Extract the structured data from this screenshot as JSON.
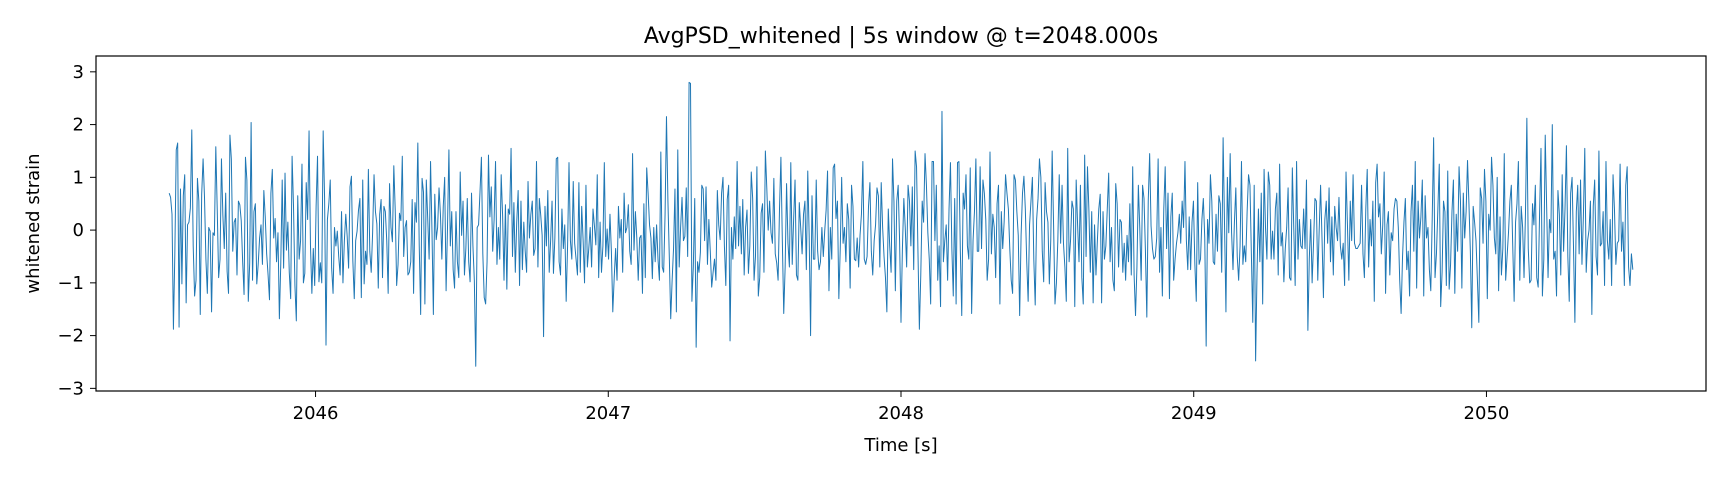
{
  "chart_data": {
    "type": "line",
    "title": "AvgPSD_whitened | 5s window @ t=2048.000s",
    "xlabel": "Time [s]",
    "ylabel": "whitened strain",
    "xlim": [
      2045.25,
      2050.75
    ],
    "ylim": [
      -3.05,
      3.3
    ],
    "xticks": [
      2046,
      2047,
      2048,
      2049,
      2050
    ],
    "xtick_labels": [
      "2046",
      "2047",
      "2048",
      "2049",
      "2050"
    ],
    "yticks": [
      3,
      2,
      1,
      0,
      -1,
      -2,
      -3
    ],
    "ytick_labels": [
      "3",
      "2",
      "1",
      "0",
      "−1",
      "−2",
      "−3"
    ],
    "grid": false,
    "legend": "none",
    "x_start": 2045.5,
    "x_end": 2050.5,
    "samples_per_second": 100,
    "series": [
      {
        "color": "#1f77b4",
        "y": [
          0.7,
          0.62,
          0.3,
          -1.88,
          -0.45,
          1.52,
          1.65,
          -1.84,
          0.78,
          -1.02,
          0.65,
          1.05,
          -1.38,
          0.1,
          0.15,
          0.42,
          1.9,
          -0.3,
          -1.25,
          -0.95,
          0.98,
          0.55,
          -1.6,
          0.68,
          1.35,
          0.62,
          -0.55,
          -1.2,
          0.05,
          -0.02,
          -1.55,
          -0.05,
          -0.1,
          1.58,
          0.4,
          -0.9,
          -0.55,
          1.35,
          0.28,
          -0.35,
          0.7,
          -0.78,
          -1.2,
          1.8,
          1.35,
          -0.4,
          0.15,
          0.22,
          -0.85,
          0.55,
          0.48,
          0.18,
          -0.6,
          -1.22,
          1.38,
          0.95,
          -1.35,
          -0.62,
          2.04,
          -0.95,
          0.35,
          0.5,
          -1.02,
          -0.65,
          -0.15,
          0.1,
          -0.65,
          0.75,
          0.25,
          -0.45,
          -0.85,
          -1.32,
          0.7,
          1.15,
          -0.15,
          0.22,
          -0.6,
          -0.05,
          -1.68,
          -0.62,
          0.95,
          -0.72,
          1.08,
          -0.38,
          0.15,
          -0.8,
          -1.3,
          1.4,
          0.45,
          -1.05,
          -1.72,
          0.65,
          -0.55,
          -0.2,
          1.25,
          -1.0,
          -0.82,
          0.9,
          0.2,
          1.88,
          -0.28,
          -1.2,
          -0.35,
          -1.05,
          0.45,
          1.4,
          -0.98,
          -0.62,
          -1.0,
          1.88,
          0.6,
          -2.18,
          0.2,
          0.5,
          0.95,
          -0.72,
          -1.2,
          0.05,
          -0.3,
          -0.02,
          -0.5,
          -0.85,
          0.35,
          -1.0,
          -0.2,
          0.3,
          -0.12,
          -0.72,
          0.82,
          1.02,
          -0.58,
          -1.3,
          -0.2,
          -0.02,
          0.38,
          0.6,
          -1.28,
          0.95,
          -1.02,
          -0.4,
          -0.65,
          1.15,
          -0.4,
          -0.8,
          -0.05,
          1.05,
          0.35,
          0.12,
          -1.1,
          0.3,
          0.58,
          -0.9,
          0.45,
          0.35,
          -0.2,
          -1.2,
          0.88,
          0.05,
          -0.22,
          1.22,
          0.38,
          -1.05,
          -0.65,
          0.32,
          0.18,
          1.4,
          -0.5,
          0.05,
          0.18,
          -0.85,
          -0.8,
          -0.6,
          0.58,
          -1.2,
          0.52,
          0.15,
          1.65,
          -0.3,
          -1.6,
          0.98,
          0.72,
          -1.4,
          0.95,
          0.22,
          -0.55,
          1.3,
          0.0,
          -1.6,
          0.68,
          -0.18,
          0.05,
          0.8,
          0.3,
          -0.55,
          0.45,
          1.0,
          -1.15,
          0.05,
          1.52,
          -0.3,
          0.35,
          -0.75,
          -1.1,
          0.35,
          -0.6,
          -0.9,
          1.1,
          -0.1,
          0.55,
          -0.85,
          -0.35,
          0.6,
          -0.6,
          -0.98,
          0.7,
          -0.3,
          -0.95,
          -2.58,
          0.05,
          0.1,
          0.72,
          1.38,
          -0.45,
          -1.28,
          -1.4,
          -0.6,
          1.42,
          0.25,
          0.82,
          -0.4,
          0.2,
          1.3,
          -0.65,
          0.05,
          -0.55,
          1.05,
          0.28,
          -0.95,
          0.48,
          -1.12,
          0.4,
          0.3,
          1.55,
          -0.5,
          0.52,
          -0.8,
          0.15,
          0.75,
          -1.05,
          0.55,
          -0.75,
          0.15,
          -0.4,
          -0.8,
          0.92,
          -0.15,
          0.3,
          0.55,
          -0.48,
          -0.35,
          1.3,
          -0.7,
          0.6,
          0.28,
          -0.1,
          -2.02,
          0.45,
          -0.3,
          0.75,
          -0.8,
          -0.2,
          0.55,
          -0.82,
          -0.15,
          1.35,
          1.38,
          -0.6,
          -0.85,
          0.4,
          -0.35,
          0.1,
          -1.35,
          -0.3,
          1.28,
          -0.2,
          -0.55,
          0.92,
          -0.25,
          -0.55,
          -0.85,
          0.9,
          -0.8,
          0.45,
          -0.2,
          -1.0,
          0.85,
          -0.7,
          -0.35,
          0.05,
          -0.7,
          0.4,
          0.08,
          -0.28,
          1.05,
          -0.9,
          0.15,
          -0.8,
          -0.3,
          1.28,
          -0.5,
          0.02,
          -0.55,
          0.3,
          -0.4,
          -1.55,
          -0.9,
          -0.35,
          -0.95,
          0.45,
          -0.15,
          0.2,
          -0.8,
          0.7,
          -0.05,
          0.05,
          0.48,
          -0.4,
          -0.65,
          1.45,
          -0.38,
          0.35,
          -0.15,
          -0.95,
          -0.15,
          -0.1,
          -1.2,
          0.5,
          -0.9,
          1.18,
          0.7,
          0.1,
          -0.15,
          -0.92,
          0.05,
          -0.6,
          0.1,
          -0.55,
          -0.95,
          1.48,
          -0.7,
          -0.8,
          0.3,
          2.15,
          0.58,
          -0.5,
          -1.68,
          -0.95,
          -0.35,
          0.78,
          -1.55,
          1.52,
          -0.7,
          0.05,
          0.62,
          -0.2,
          -0.12,
          0.8,
          -0.5,
          2.8,
          2.78,
          -1.35,
          -0.7,
          0.6,
          -2.22,
          -0.6,
          -0.8,
          -0.42,
          0.85,
          0.78,
          -0.2,
          0.82,
          -0.65,
          0.2,
          -0.4,
          -1.08,
          -0.8,
          -0.55,
          -0.95,
          0.75,
          0.1,
          -0.18,
          0.7,
          1.0,
          -0.3,
          -1.05,
          0.58,
          0.85,
          -2.1,
          0.05,
          -0.55,
          0.25,
          -0.35,
          1.3,
          -0.3,
          0.45,
          -0.45,
          0.58,
          -0.85,
          0.05,
          0.38,
          -0.82,
          -0.3,
          1.1,
          0.6,
          -0.95,
          -0.5,
          1.2,
          -1.25,
          -0.9,
          0.32,
          0.5,
          -0.8,
          1.5,
          0.8,
          0.0,
          0.55,
          -0.05,
          -0.25,
          0.98,
          -0.45,
          -0.62,
          -0.95,
          0.4,
          1.38,
          -0.2,
          -1.58,
          -0.7,
          0.88,
          -0.25,
          -0.7,
          1.28,
          -0.65,
          0.2,
          0.95,
          -0.85,
          -0.95,
          0.52,
          0.05,
          -0.45,
          0.3,
          0.55,
          -0.75,
          1.12,
          -0.1,
          -2.0,
          0.65,
          -0.55,
          -0.55,
          0.95,
          -0.4,
          -0.75,
          -0.6,
          0.05,
          -0.5,
          -0.02,
          0.38,
          1.12,
          -1.15,
          0.05,
          -0.55,
          1.18,
          1.25,
          0.22,
          0.55,
          -1.3,
          -0.35,
          1.0,
          -0.25,
          0.05,
          -0.6,
          0.5,
          0.2,
          -1.1,
          0.85,
          0.45,
          -0.55,
          -0.58,
          -0.15,
          -0.7,
          -0.1,
          0.3,
          1.3,
          -0.55,
          -0.65,
          -0.5,
          0.45,
          0.9,
          -0.4,
          -0.85,
          -0.2,
          0.1,
          0.8,
          0.65,
          -0.7,
          0.9,
          0.05,
          -0.5,
          -0.9,
          -1.55,
          0.4,
          -0.3,
          -0.8,
          1.35,
          0.55,
          -1.15,
          0.55,
          0.85,
          -0.2,
          -1.75,
          -0.35,
          0.6,
          0.05,
          -0.7,
          0.85,
          0.55,
          -0.3,
          0.82,
          -0.75,
          1.5,
          1.2,
          -0.4,
          -1.88,
          -0.85,
          0.55,
          0.15,
          1.45,
          0.85,
          -0.05,
          -0.55,
          -1.4,
          1.3,
          1.3,
          -0.2,
          0.85,
          -0.95,
          -0.3,
          -1.45,
          2.25,
          -0.6,
          -0.2,
          0.1,
          -0.95,
          0.4,
          1.28,
          -0.35,
          -1.25,
          0.6,
          -1.4,
          1.28,
          1.3,
          -0.4,
          -1.62,
          0.7,
          0.4,
          1.05,
          -0.3,
          -0.55,
          1.18,
          -1.58,
          -0.2,
          0.35,
          1.35,
          -0.4,
          -0.4,
          1.2,
          -0.35,
          0.95,
          0.7,
          0.2,
          -0.95,
          -0.55,
          1.48,
          -0.45,
          0.3,
          0.05,
          -0.9,
          0.5,
          0.85,
          -1.4,
          0.35,
          -0.35,
          0.15,
          1.05,
          0.7,
          0.4,
          -0.35,
          -0.95,
          -1.2,
          1.05,
          0.95,
          0.35,
          -0.1,
          -1.62,
          -0.1,
          0.7,
          1.02,
          0.4,
          -0.6,
          -1.35,
          0.1,
          0.55,
          1.0,
          -0.55,
          -1.42,
          0.2,
          0.6,
          1.35,
          1.0,
          -0.4,
          -0.98,
          0.9,
          0.35,
          0.15,
          -1.02,
          -0.2,
          1.5,
          0.1,
          -1.4,
          -1.0,
          -0.2,
          1.05,
          -0.25,
          0.85,
          -0.25,
          -0.7,
          -1.35,
          1.55,
          -0.6,
          -0.2,
          0.55,
          0.4,
          -1.45,
          0.95,
          0.1,
          -0.6,
          0.85,
          -0.9,
          -1.4,
          1.42,
          -0.5,
          1.2,
          0.38,
          -0.8,
          0.35,
          -1.38,
          0.1,
          -0.85,
          -0.2,
          0.4,
          0.68,
          -1.38,
          0.35,
          -0.55,
          -0.3,
          0.4,
          1.08,
          -0.6,
          0.05,
          -0.95,
          -1.15,
          0.88,
          0.5,
          -0.7,
          0.2,
          0.15,
          -0.8,
          -0.25,
          -0.95,
          -0.1,
          -0.6,
          0.5,
          -0.85,
          1.2,
          -0.85,
          -1.62,
          -0.7,
          0.85,
          0.05,
          -0.95,
          0.85,
          0.6,
          -0.38,
          -1.65,
          0.55,
          1.45,
          0.08,
          -0.35,
          -0.55,
          -0.5,
          -0.15,
          1.35,
          -0.8,
          0.05,
          -1.25,
          0.4,
          1.2,
          -0.35,
          0.7,
          -1.3,
          0.25,
          0.7,
          -0.95,
          -0.55,
          -0.25,
          -0.05,
          0.3,
          -0.25,
          0.55,
          0.05,
          1.3,
          -0.2,
          -0.75,
          0.25,
          -0.75,
          0.15,
          0.55,
          -0.65,
          -1.35,
          0.9,
          -0.65,
          -0.55,
          0.2,
          0.6,
          -0.15,
          -2.2,
          0.2,
          -0.25,
          1.05,
          0.55,
          -0.6,
          -0.65,
          0.3,
          -0.4,
          0.65,
          0.5,
          -0.8,
          1.75,
          0.1,
          -1.55,
          1.0,
          -0.05,
          1.45,
          -0.05,
          -0.75,
          0.15,
          0.8,
          -0.5,
          -0.95,
          -0.3,
          1.3,
          -0.65,
          -0.3,
          -0.6,
          0.35,
          1.05,
          0.85,
          -0.45,
          -1.75,
          0.85,
          -2.48,
          -0.8,
          0.4,
          -0.6,
          0.7,
          -1.4,
          1.15,
          0.05,
          -0.55,
          1.1,
          0.85,
          -0.55,
          -0.02,
          -0.55,
          0.4,
          0.7,
          -0.85,
          1.25,
          -0.3,
          -0.05,
          -0.98,
          -0.35,
          0.05,
          0.8,
          -0.9,
          -0.95,
          1.18,
          0.05,
          -1.05,
          1.3,
          -0.55,
          0.2,
          -0.3,
          -0.35,
          0.4,
          -0.35,
          0.95,
          -1.9,
          -0.55,
          0.2,
          -1.0,
          -0.25,
          0.6,
          0.55,
          -0.95,
          0.0,
          0.85,
          -0.15,
          -1.28,
          0.2,
          0.55,
          -0.25,
          0.8,
          -0.6,
          0.25,
          -0.85,
          0.45,
          0.05,
          -0.2,
          0.62,
          -0.3,
          -0.55,
          -0.25,
          -1.05,
          1.1,
          0.1,
          -0.95,
          0.55,
          -0.2,
          1.05,
          -0.25,
          -0.35,
          -0.35,
          -0.3,
          -0.25,
          0.85,
          -0.45,
          -0.9,
          0.4,
          1.15,
          -0.7,
          0.2,
          -0.3,
          0.55,
          -1.35,
          0.9,
          1.25,
          0.25,
          0.5,
          -0.45,
          0.1,
          1.1,
          -1.2,
          0.1,
          0.35,
          -0.85,
          -0.05,
          -0.2,
          0.4,
          0.6,
          0.55,
          0.05,
          -0.95,
          -1.58,
          -0.5,
          0.15,
          0.6,
          -0.75,
          -0.4,
          -1.25,
          0.35,
          0.85,
          -0.4,
          1.3,
          -1.1,
          0.55,
          -0.15,
          0.25,
          0.95,
          -1.25,
          0.65,
          -0.15,
          0.05,
          -0.75,
          -1.15,
          0.2,
          1.75,
          -0.9,
          -0.45,
          0.4,
          1.25,
          -1.45,
          -0.8,
          0.55,
          0.35,
          -1.05,
          1.12,
          -1.12,
          -0.65,
          0.35,
          0.95,
          -1.2,
          0.3,
          -0.4,
          1.2,
          0.55,
          -1.1,
          0.7,
          -0.15,
          0.35,
          1.32,
          0.5,
          -0.4,
          -1.85,
          0.45,
          0.15,
          -0.2,
          -0.95,
          -1.75,
          0.8,
          0.6,
          -0.25,
          1.15,
          0.55,
          -1.3,
          0.3,
          0.0,
          1.38,
          0.85,
          -0.15,
          -0.45,
          1.0,
          -1.15,
          0.25,
          -0.85,
          -0.35,
          1.45,
          -0.95,
          -0.5,
          -0.05,
          0.55,
          0.85,
          -0.3,
          -1.35,
          0.15,
          0.5,
          1.3,
          -0.95,
          0.45,
          0.05,
          -0.9,
          0.3,
          2.12,
          -0.35,
          -1.0,
          -0.95,
          0.5,
          0.1,
          0.85,
          -0.9,
          -1.08,
          0.3,
          1.55,
          -1.25,
          -0.55,
          1.8,
          0.45,
          -0.9,
          0.2,
          -0.05,
          2.0,
          -0.55,
          -0.4,
          -1.25,
          0.75,
          0.3,
          -0.85,
          1.05,
          -0.4,
          0.4,
          1.6,
          -0.5,
          -1.35,
          0.7,
          1.0,
          -0.3,
          -1.75,
          0.35,
          0.85,
          -0.45,
          0.95,
          -0.65,
          0.25,
          1.55,
          -0.8,
          -0.2,
          0.0,
          0.55,
          -1.6,
          0.45,
          0.95,
          -0.5,
          -0.85,
          1.5,
          -0.3,
          -0.25,
          0.35,
          -1.05,
          1.3,
          -0.2,
          -0.55,
          0.2,
          -1.05,
          1.05,
          0.4,
          -0.65,
          -0.25,
          -0.2,
          1.25,
          -0.4,
          0.15,
          -1.05,
          0.85,
          1.2,
          -0.7,
          -1.05,
          -0.45,
          -0.75
        ]
      }
    ]
  }
}
